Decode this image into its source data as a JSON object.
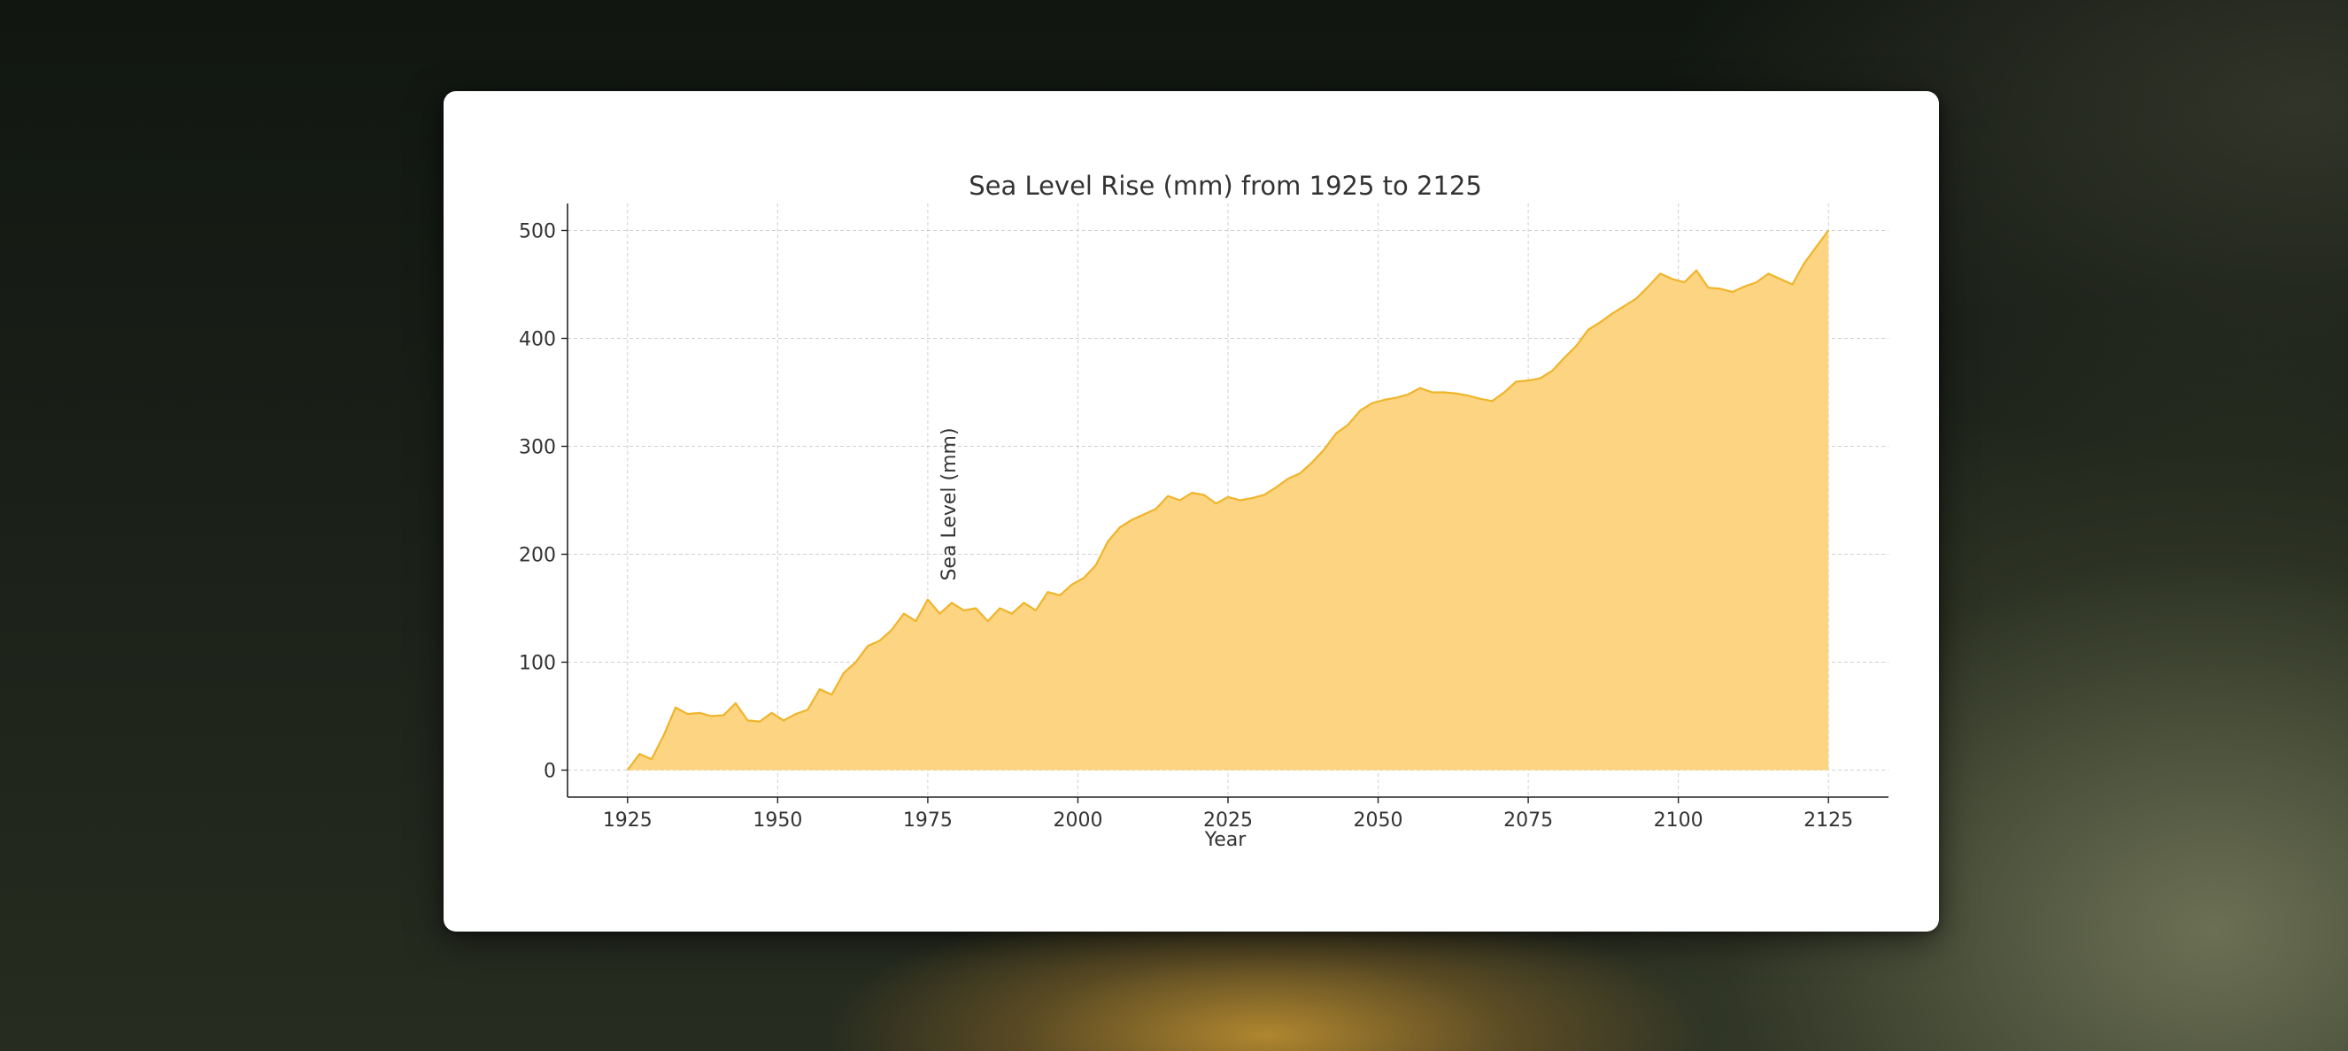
{
  "chart_data": {
    "type": "area",
    "title": "Sea Level Rise (mm) from 1925 to 2125",
    "xlabel": "Year",
    "ylabel": "Sea Level (mm)",
    "xlim": [
      1915,
      2135
    ],
    "ylim": [
      -25,
      525
    ],
    "x_ticks": [
      1925,
      1950,
      1975,
      2000,
      2025,
      2050,
      2075,
      2100,
      2125
    ],
    "y_ticks": [
      0,
      100,
      200,
      300,
      400,
      500
    ],
    "grid": true,
    "colors": {
      "fill": "#fdd582",
      "line": "#f0b429"
    },
    "x": [
      1925,
      1927,
      1929,
      1931,
      1933,
      1935,
      1937,
      1939,
      1941,
      1943,
      1945,
      1947,
      1949,
      1951,
      1953,
      1955,
      1957,
      1959,
      1961,
      1963,
      1965,
      1967,
      1969,
      1971,
      1973,
      1975,
      1977,
      1979,
      1981,
      1983,
      1985,
      1987,
      1989,
      1991,
      1993,
      1995,
      1997,
      1999,
      2001,
      2003,
      2005,
      2007,
      2009,
      2011,
      2013,
      2015,
      2017,
      2019,
      2021,
      2023,
      2025,
      2027,
      2029,
      2031,
      2033,
      2035,
      2037,
      2039,
      2041,
      2043,
      2045,
      2047,
      2049,
      2051,
      2053,
      2055,
      2057,
      2059,
      2061,
      2063,
      2065,
      2067,
      2069,
      2071,
      2073,
      2075,
      2077,
      2079,
      2081,
      2083,
      2085,
      2087,
      2089,
      2091,
      2093,
      2095,
      2097,
      2099,
      2101,
      2103,
      2105,
      2107,
      2109,
      2111,
      2113,
      2115,
      2117,
      2119,
      2121,
      2123,
      2125
    ],
    "values": [
      0,
      15,
      10,
      32,
      58,
      52,
      53,
      50,
      51,
      62,
      46,
      45,
      53,
      46,
      52,
      56,
      75,
      70,
      90,
      100,
      115,
      120,
      130,
      145,
      138,
      158,
      145,
      155,
      148,
      150,
      138,
      150,
      145,
      155,
      148,
      165,
      162,
      172,
      178,
      190,
      212,
      225,
      232,
      237,
      242,
      254,
      250,
      257,
      255,
      247,
      253,
      250,
      252,
      255,
      262,
      270,
      275,
      285,
      297,
      312,
      320,
      333,
      340,
      343,
      345,
      348,
      354,
      350,
      350,
      349,
      347,
      344,
      342,
      350,
      360,
      361,
      363,
      370,
      382,
      393,
      408,
      415,
      423,
      430,
      437,
      448,
      460,
      455,
      452,
      463,
      447,
      446,
      443,
      448,
      452,
      460,
      455,
      450,
      470,
      485,
      500
    ]
  }
}
